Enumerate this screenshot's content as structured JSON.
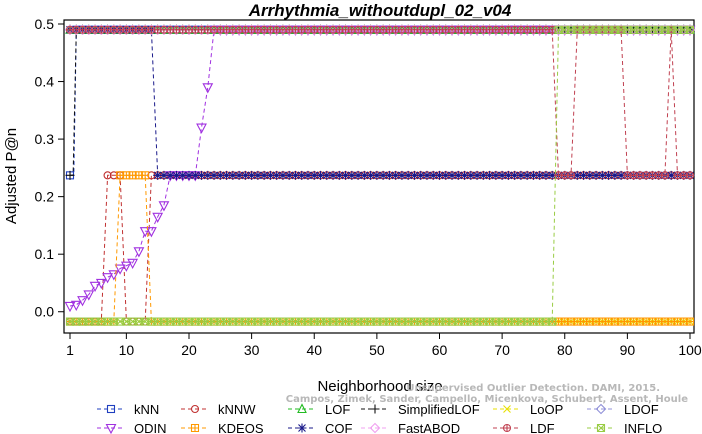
{
  "chart_data": {
    "type": "line",
    "title": "Arrhythmia_withoutdupl_02_v04",
    "xlabel": "Neighborhood size",
    "ylabel": "Adjusted P@n",
    "xlim": [
      1,
      100
    ],
    "ylim": [
      -0.03,
      0.5
    ],
    "x_ticks": [
      1,
      10,
      20,
      30,
      40,
      50,
      60,
      70,
      80,
      90,
      100
    ],
    "y_ticks": [
      0.0,
      0.1,
      0.2,
      0.3,
      0.4,
      0.5
    ],
    "y_tick_labels": [
      "0.0",
      "0.1",
      "0.2",
      "0.3",
      "0.4",
      "0.5"
    ],
    "legend_position": "bottom",
    "watermark": [
      "Unsupervised Outlier Detection. DAMI, 2015.",
      "Campos, Zimek, Sander, Campello, Micenkova, Schubert, Assent, Houle"
    ],
    "series": [
      {
        "name": "kNN",
        "color": "#1f3fbf",
        "dash": "4,3",
        "marker": "square",
        "segments": [
          [
            1,
            0.237
          ],
          [
            1.6,
            0.237
          ],
          [
            2,
            0.49
          ],
          [
            100,
            0.49
          ]
        ]
      },
      {
        "name": "kNNW",
        "color": "#c03030",
        "dash": "4,3",
        "marker": "circle",
        "segments": [
          [
            1,
            -0.017
          ],
          [
            6,
            -0.017
          ],
          [
            7,
            0.237
          ],
          [
            9,
            0.237
          ],
          [
            10,
            -0.017
          ],
          [
            13,
            -0.017
          ],
          [
            14,
            0.237
          ],
          [
            100,
            0.237
          ]
        ]
      },
      {
        "name": "LOF",
        "color": "#22bb22",
        "dash": "4,3",
        "marker": "triangle-up",
        "segments": [
          [
            1,
            0.49
          ],
          [
            100,
            0.49
          ]
        ]
      },
      {
        "name": "SimplifiedLOF",
        "color": "#111111",
        "dash": "4,3",
        "marker": "plus",
        "segments": [
          [
            1,
            0.237
          ],
          [
            1.5,
            0.237
          ],
          [
            2,
            0.49
          ],
          [
            100,
            0.49
          ]
        ]
      },
      {
        "name": "LoOP",
        "color": "#e8e000",
        "dash": "4,3",
        "marker": "x",
        "segments": [
          [
            1,
            -0.017
          ],
          [
            100,
            -0.017
          ]
        ]
      },
      {
        "name": "LDOF",
        "color": "#9090d8",
        "dash": "4,3",
        "marker": "diamond",
        "segments": [
          [
            1,
            0.49
          ],
          [
            100,
            0.49
          ]
        ]
      },
      {
        "name": "ODIN",
        "color": "#a030e0",
        "dash": "4,3",
        "marker": "triangle-down",
        "segments": [
          [
            1,
            0.01
          ],
          [
            2,
            0.012
          ],
          [
            3,
            0.02
          ],
          [
            4,
            0.03
          ],
          [
            5,
            0.045
          ],
          [
            6,
            0.05
          ],
          [
            7,
            0.06
          ],
          [
            8,
            0.065
          ],
          [
            9,
            0.075
          ],
          [
            10,
            0.08
          ],
          [
            11,
            0.085
          ],
          [
            12,
            0.105
          ],
          [
            13,
            0.14
          ],
          [
            14,
            0.14
          ],
          [
            15,
            0.165
          ],
          [
            16,
            0.185
          ],
          [
            17,
            0.237
          ],
          [
            21,
            0.237
          ],
          [
            22,
            0.32
          ],
          [
            23,
            0.39
          ],
          [
            24,
            0.49
          ],
          [
            100,
            0.49
          ]
        ]
      },
      {
        "name": "KDEOS",
        "color": "#ff9900",
        "dash": "4,3",
        "marker": "cross-square",
        "segments": [
          [
            1,
            -0.017
          ],
          [
            8,
            -0.017
          ],
          [
            9,
            0.237
          ],
          [
            13,
            0.237
          ],
          [
            14,
            -0.017
          ],
          [
            100,
            -0.017
          ]
        ]
      },
      {
        "name": "COF",
        "color": "#1a1a8a",
        "dash": "4,3",
        "marker": "asterisk",
        "segments": [
          [
            1,
            0.49
          ],
          [
            14,
            0.49
          ],
          [
            15,
            0.237
          ],
          [
            100,
            0.237
          ]
        ]
      },
      {
        "name": "FastABOD",
        "color": "#f0a0f0",
        "dash": "4,3",
        "marker": "diamond",
        "segments": [
          [
            1,
            0.49
          ],
          [
            100,
            0.49
          ]
        ]
      },
      {
        "name": "LDF",
        "color": "#c04050",
        "dash": "4,3",
        "marker": "circle-plus",
        "segments": [
          [
            1,
            0.49
          ],
          [
            78,
            0.49
          ],
          [
            79,
            0.237
          ],
          [
            81,
            0.237
          ],
          [
            82,
            0.49
          ],
          [
            89,
            0.49
          ],
          [
            90,
            0.237
          ],
          [
            96,
            0.237
          ],
          [
            97,
            0.49
          ],
          [
            98,
            0.237
          ],
          [
            100,
            0.237
          ]
        ]
      },
      {
        "name": "INFLO",
        "color": "#99cc44",
        "dash": "4,3",
        "marker": "square-x",
        "segments": [
          [
            1,
            -0.017
          ],
          [
            78,
            -0.017
          ],
          [
            79,
            0.49
          ],
          [
            100,
            0.49
          ]
        ]
      }
    ]
  }
}
